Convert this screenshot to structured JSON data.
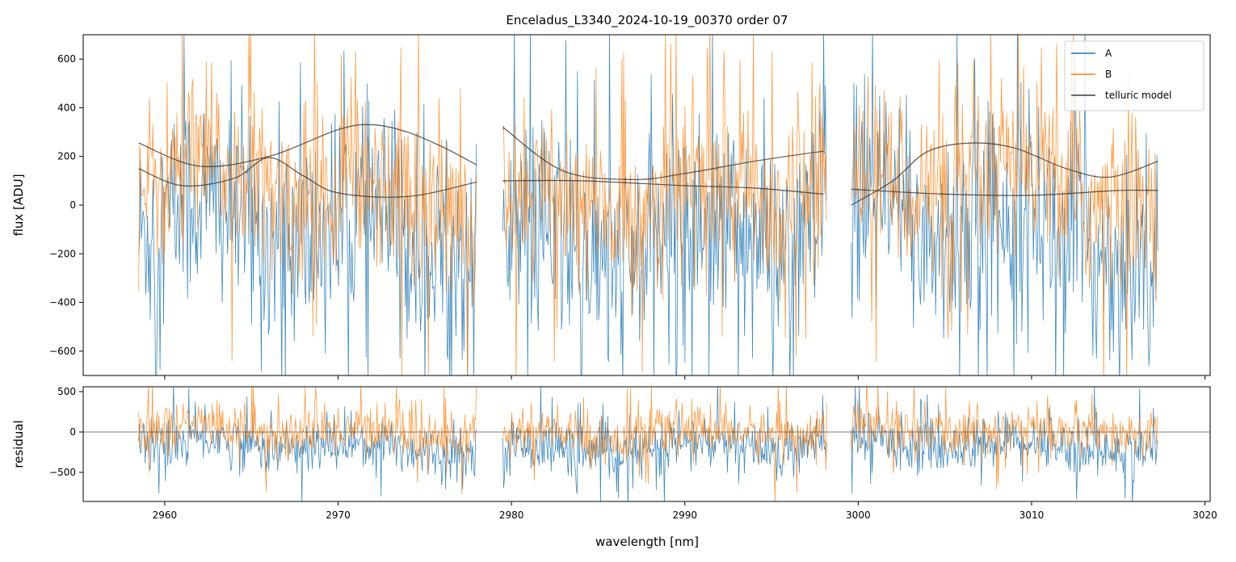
{
  "chart_data": [
    {
      "type": "line",
      "panel": "main",
      "title": "Enceladus_L3340_2024-10-19_00370  order 07",
      "xlabel": "",
      "ylabel": "flux [ADU]",
      "xlim": [
        2955.3,
        3020.3
      ],
      "ylim": [
        -700,
        700
      ],
      "yticks": [
        -600,
        -400,
        -200,
        0,
        200,
        400,
        600
      ],
      "grid": false,
      "legend_position": "top-right",
      "segments": [
        [
          2958.5,
          2978.0
        ],
        [
          2979.5,
          2998.2
        ],
        [
          2999.6,
          3017.3
        ]
      ],
      "series": [
        {
          "name": "A",
          "color": "#1f77b4",
          "style": "noisy flux",
          "center": -120,
          "amplitude": 420
        },
        {
          "name": "B",
          "color": "#ff7f0e",
          "style": "noisy flux",
          "center": 60,
          "amplitude": 330
        },
        {
          "name": "telluric model",
          "color": "#3a3a3a",
          "smooth_curves": [
            {
              "x": [
                2958.5,
                2962,
                2966,
                2970,
                2972,
                2974,
                2976,
                2978
              ],
              "y": [
                255,
                160,
                200,
                310,
                330,
                300,
                240,
                165
              ]
            },
            {
              "x": [
                2979.5,
                2983,
                2987,
                2990,
                2994,
                2998
              ],
              "y": [
                320,
                140,
                105,
                130,
                180,
                222
              ]
            },
            {
              "x": [
                2999.6,
                3002,
                3004,
                3006.5,
                3009,
                3012,
                3014.5,
                3017.3
              ],
              "y": [
                0,
                100,
                220,
                255,
                235,
                150,
                115,
                180
              ]
            }
          ],
          "lower_curves": [
            {
              "x": [
                2958.5,
                2961,
                2964,
                2966,
                2968,
                2970,
                2974,
                2978
              ],
              "y": [
                150,
                80,
                110,
                195,
                120,
                50,
                35,
                95
              ]
            },
            {
              "x": [
                2979.5,
                2984,
                2990,
                2994,
                2998
              ],
              "y": [
                100,
                100,
                80,
                70,
                45
              ]
            },
            {
              "x": [
                2999.6,
                3005,
                3010,
                3015,
                3017.3
              ],
              "y": [
                65,
                45,
                40,
                60,
                60
              ]
            }
          ]
        }
      ]
    },
    {
      "type": "line",
      "panel": "residual",
      "xlabel": "wavelength [nm]",
      "ylabel": "residual",
      "xlim": [
        2955.3,
        3020.3
      ],
      "ylim": [
        -860,
        560
      ],
      "yticks": [
        -500,
        0,
        500
      ],
      "xticks": [
        2960,
        2970,
        2980,
        2990,
        3000,
        3010,
        3020
      ],
      "zero_line": true,
      "series": [
        {
          "name": "A",
          "color": "#1f77b4",
          "center": -180,
          "amplitude": 300
        },
        {
          "name": "B",
          "color": "#ff7f0e",
          "center": 0,
          "amplitude": 280
        }
      ]
    }
  ]
}
